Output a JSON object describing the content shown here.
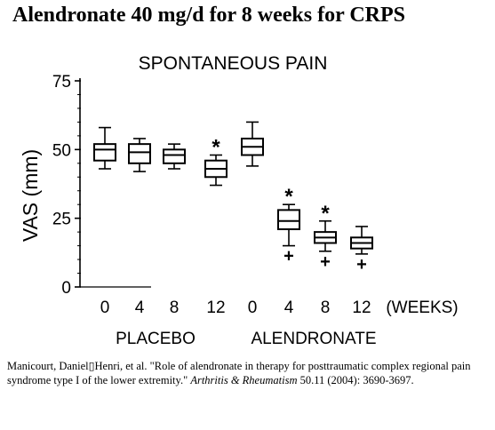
{
  "page": {
    "title": "Alendronate 40 mg/d for 8 weeks for CRPS"
  },
  "citation": {
    "authors_and_title": "Manicourt, Daniel▯Henri, et al. \"Role of alendronate in therapy for posttraumatic complex regional pain syndrome type I of the lower extremity.\"",
    "journal": "Arthritis & Rheumatism",
    "volume_pages": "50.11 (2004): 3690-3697."
  },
  "chart_data": {
    "type": "box",
    "title": "SPONTANEOUS PAIN",
    "ylabel": "VAS (mm)",
    "xlabel_suffix": "(WEEKS)",
    "ylim": [
      0,
      75
    ],
    "yticks": [
      0,
      25,
      50,
      75
    ],
    "groups": [
      "PLACEBO",
      "ALENDRONATE"
    ],
    "boxes": [
      {
        "group": "PLACEBO",
        "week": "0",
        "whisker_low": 43,
        "q1": 46,
        "median": 50,
        "q3": 52,
        "whisker_high": 58,
        "marker_above": "",
        "marker_below": ""
      },
      {
        "group": "PLACEBO",
        "week": "4",
        "whisker_low": 42,
        "q1": 45,
        "median": 49,
        "q3": 52,
        "whisker_high": 54,
        "marker_above": "",
        "marker_below": ""
      },
      {
        "group": "PLACEBO",
        "week": "8",
        "whisker_low": 43,
        "q1": 45,
        "median": 48,
        "q3": 50,
        "whisker_high": 52,
        "marker_above": "",
        "marker_below": ""
      },
      {
        "group": "PLACEBO",
        "week": "12",
        "whisker_low": 37,
        "q1": 40,
        "median": 43,
        "q3": 46,
        "whisker_high": 48,
        "marker_above": "*",
        "marker_below": ""
      },
      {
        "group": "ALENDRONATE",
        "week": "0",
        "whisker_low": 44,
        "q1": 48,
        "median": 51,
        "q3": 54,
        "whisker_high": 60,
        "marker_above": "",
        "marker_below": ""
      },
      {
        "group": "ALENDRONATE",
        "week": "4",
        "whisker_low": 15,
        "q1": 21,
        "median": 24,
        "q3": 28,
        "whisker_high": 30,
        "marker_above": "*",
        "marker_below": "+"
      },
      {
        "group": "ALENDRONATE",
        "week": "8",
        "whisker_low": 13,
        "q1": 16,
        "median": 18,
        "q3": 20,
        "whisker_high": 24,
        "marker_above": "*",
        "marker_below": "+"
      },
      {
        "group": "ALENDRONATE",
        "week": "12",
        "whisker_low": 12,
        "q1": 14,
        "median": 16,
        "q3": 18,
        "whisker_high": 22,
        "marker_above": "",
        "marker_below": "+"
      }
    ]
  }
}
